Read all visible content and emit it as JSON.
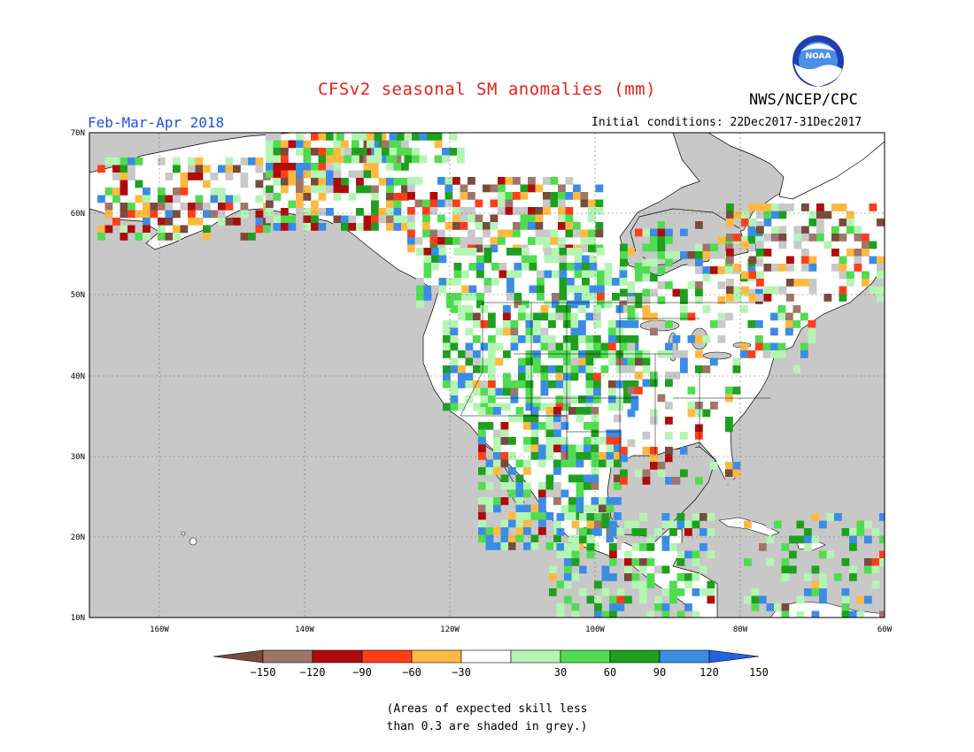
{
  "header": {
    "title": "CFSv2 seasonal SM anomalies (mm)",
    "org": "NWS/NCEP/CPC",
    "period": "Feb-Mar-Apr 2018",
    "initial_conditions": "Initial conditions: 22Dec2017-31Dec2017",
    "logo_text": "NOAA"
  },
  "map": {
    "lat_labels": [
      "70N",
      "60N",
      "50N",
      "40N",
      "30N",
      "20N",
      "10N"
    ],
    "lon_labels": [
      "160W",
      "140W",
      "120W",
      "100W",
      "80W",
      "60W"
    ],
    "ocean_color": "#c8c8c8",
    "land_color": "#ffffff"
  },
  "legend": {
    "ticks": [
      "-150",
      "-120",
      "-90",
      "-60",
      "-30",
      "30",
      "60",
      "90",
      "120",
      "150"
    ],
    "colors": [
      "#7a4a3c",
      "#a0756a",
      "#b00b0b",
      "#ff3d1a",
      "#ffb940",
      "#ffffff",
      "#b4f5b4",
      "#50dc50",
      "#1ea01e",
      "#3c8ce6",
      "#2064e0"
    ]
  },
  "note": {
    "line1": "(Areas of expected skill less",
    "line2": "than 0.3 are shaded in grey.)"
  }
}
